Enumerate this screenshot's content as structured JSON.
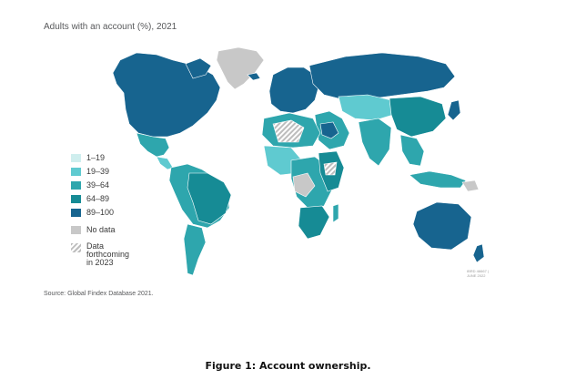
{
  "title": "Adults with an account (%), 2021",
  "colors": {
    "band_1_19": "#cfeeee",
    "band_19_39": "#5fcad0",
    "band_39_64": "#2ea6ad",
    "band_64_89": "#168b95",
    "band_89_100": "#17648f",
    "no_data": "#c8c8c8",
    "forthcoming": "hatched grey"
  },
  "legend": [
    {
      "label": "1–19",
      "color": "#cfeeee"
    },
    {
      "label": "19–39",
      "color": "#5fcad0"
    },
    {
      "label": "39–64",
      "color": "#2ea6ad"
    },
    {
      "label": "64–89",
      "color": "#168b95"
    },
    {
      "label": "89–100",
      "color": "#17648f"
    },
    {
      "label": "No data",
      "color": "#c8c8c8"
    },
    {
      "label": "Data\nforthcoming\nin 2023",
      "color": "hatched"
    }
  ],
  "source": "Source: Global Findex Database 2021.",
  "map_credit": "IBRD 46667 |\nJUNE 2022",
  "caption": "Figure 1: Account ownership."
}
